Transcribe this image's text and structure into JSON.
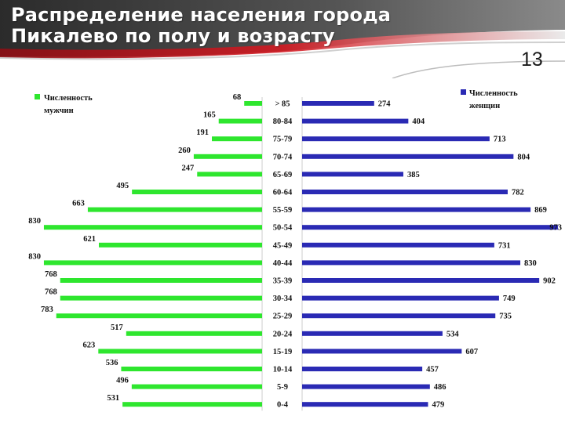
{
  "slide": {
    "title": "Распределение населения города\nПикалево по полу и возрасту",
    "number": "13"
  },
  "colors": {
    "men": "#2ee62e",
    "women": "#2a2ab4",
    "header_red": "#c0141c",
    "header_dark": "#3a3a3a"
  },
  "chart_data": {
    "type": "bar",
    "orientation": "horizontal",
    "layout": "population-pyramid",
    "categories": [
      "> 85",
      "80-84",
      "75-79",
      "70-74",
      "65-69",
      "60-64",
      "55-59",
      "50-54",
      "45-49",
      "40-44",
      "35-39",
      "30-34",
      "25-29",
      "20-24",
      "15-19",
      "10-14",
      "5-9",
      "0-4"
    ],
    "series": [
      {
        "name": "Численность мужчин",
        "color": "#2ee62e",
        "values": [
          68,
          165,
          191,
          260,
          247,
          495,
          663,
          830,
          621,
          830,
          768,
          768,
          783,
          517,
          623,
          536,
          496,
          531
        ]
      },
      {
        "name": "Численность женщин",
        "color": "#2a2ab4",
        "values": [
          274,
          404,
          713,
          804,
          385,
          782,
          869,
          973,
          731,
          830,
          902,
          749,
          735,
          534,
          607,
          457,
          486,
          479
        ]
      }
    ],
    "legend": {
      "men": [
        "Численность",
        "мужчин"
      ],
      "women": [
        "Численность",
        "женщин"
      ],
      "placement": "top-left and top-right"
    },
    "grid": false
  }
}
